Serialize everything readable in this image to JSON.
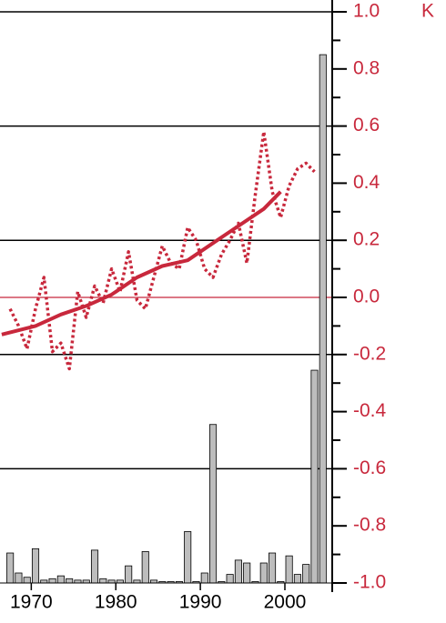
{
  "chart_data": {
    "type": "combo",
    "unit_label": "K",
    "xlim": [
      1966.3,
      2005.6
    ],
    "ylim": [
      -1.0,
      1.0
    ],
    "xticks": [
      1970,
      1980,
      1990,
      2000
    ],
    "yticks": [
      {
        "value": -1.0,
        "label": "-1.0"
      },
      -0.8,
      -0.6,
      -0.4,
      -0.2,
      {
        "value": 0.0,
        "label": "0.0"
      },
      0.2,
      0.4,
      0.6,
      0.8,
      {
        "value": 1.0,
        "label": "1.0"
      }
    ],
    "minor_yticks": [
      -0.9,
      -0.7,
      -0.5,
      -0.3,
      -0.1,
      0.1,
      0.3,
      0.5,
      0.7,
      0.9
    ],
    "grid_values": [
      1.0,
      0.6,
      0.2,
      -0.2,
      -0.6
    ],
    "zero_line": 0.0,
    "axis_color": "#c8283c",
    "series": [
      {
        "type": "bar",
        "color": "#bdbdbd",
        "x": [
          1967,
          1968,
          1969,
          1970,
          1971,
          1972,
          1973,
          1974,
          1975,
          1976,
          1977,
          1978,
          1979,
          1980,
          1981,
          1982,
          1983,
          1984,
          1985,
          1986,
          1987,
          1988,
          1989,
          1990,
          1991,
          1992,
          1993,
          1994,
          1995,
          1996,
          1997,
          1998,
          1999,
          2000,
          2001,
          2002,
          2003,
          2004
        ],
        "values": [
          -0.895,
          -0.965,
          -0.98,
          -0.88,
          -0.99,
          -0.985,
          -0.975,
          -0.985,
          -0.99,
          -0.99,
          -0.885,
          -0.985,
          -0.99,
          -0.99,
          -0.94,
          -0.99,
          -0.89,
          -0.99,
          -0.995,
          -0.995,
          -0.995,
          -0.82,
          -0.995,
          -0.965,
          -0.445,
          -0.995,
          -0.97,
          -0.92,
          -0.93,
          -0.995,
          -0.93,
          -0.895,
          -0.995,
          -0.905,
          -0.97,
          -0.935,
          -0.255,
          0.85
        ]
      },
      {
        "type": "line",
        "style": "dotted",
        "color": "#c8283c",
        "x": [
          1967,
          1968,
          1969,
          1970,
          1971,
          1972,
          1973,
          1974,
          1975,
          1976,
          1977,
          1978,
          1979,
          1980,
          1981,
          1982,
          1983,
          1984,
          1985,
          1986,
          1987,
          1988,
          1989,
          1990,
          1991,
          1992,
          1993,
          1994,
          1995,
          1996,
          1997,
          1998,
          1999,
          2000,
          2001,
          2002,
          2003
        ],
        "values": [
          -0.04,
          -0.1,
          -0.18,
          -0.04,
          0.07,
          -0.19,
          -0.16,
          -0.25,
          0.02,
          -0.07,
          0.04,
          -0.02,
          0.1,
          0.02,
          0.16,
          -0.01,
          -0.04,
          0.07,
          0.18,
          0.12,
          0.1,
          0.245,
          0.2,
          0.1,
          0.07,
          0.15,
          0.2,
          0.26,
          0.12,
          0.36,
          0.58,
          0.37,
          0.28,
          0.39,
          0.45,
          0.47,
          0.44
        ]
      },
      {
        "type": "line",
        "style": "solid",
        "color": "#c8283c",
        "x": [
          1966,
          1970,
          1973,
          1976,
          1979,
          1982,
          1985,
          1988,
          1991,
          1994,
          1997,
          1999
        ],
        "values": [
          -0.13,
          -0.1,
          -0.06,
          -0.03,
          0.01,
          0.07,
          0.11,
          0.13,
          0.19,
          0.25,
          0.31,
          0.37
        ]
      }
    ]
  }
}
